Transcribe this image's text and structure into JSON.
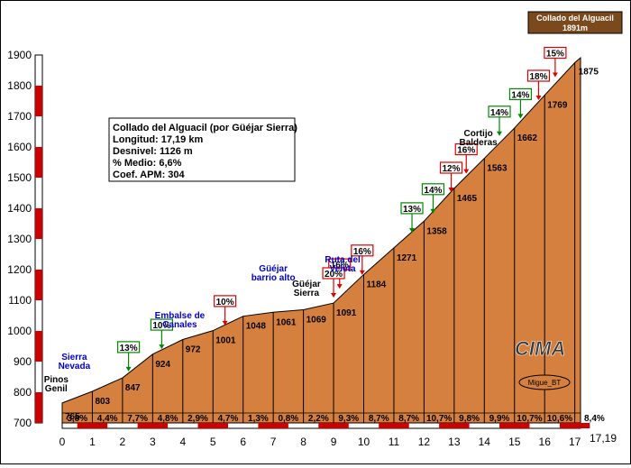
{
  "chart_data": {
    "type": "area",
    "title": "Collado del Alguacil",
    "summit_label": [
      "Collado del Alguacil",
      "1891m"
    ],
    "info": [
      "Collado del Alguacil (por Güéjar Sierra)",
      "Longitud: 17,19 km",
      "Desnivel: 1126 m",
      "% Medio: 6,6%",
      "Coef. APM: 304"
    ],
    "ylim": [
      700,
      1900
    ],
    "yticks": [
      700,
      800,
      900,
      1000,
      1100,
      1200,
      1300,
      1400,
      1500,
      1600,
      1700,
      1800,
      1900
    ],
    "xlim": [
      0,
      17.19
    ],
    "xticks": [
      "0",
      "1",
      "2",
      "3",
      "4",
      "5",
      "6",
      "7",
      "8",
      "9",
      "10",
      "11",
      "12",
      "13",
      "14",
      "15",
      "16",
      "17"
    ],
    "xend_label": "17,19",
    "x": [
      0,
      1,
      2,
      3,
      4,
      5,
      6,
      7,
      8,
      9,
      10,
      11,
      12,
      13,
      14,
      15,
      16,
      17,
      17.19
    ],
    "elevation": [
      765,
      803,
      847,
      924,
      972,
      1001,
      1048,
      1061,
      1069,
      1091,
      1184,
      1271,
      1358,
      1465,
      1563,
      1662,
      1769,
      1875,
      1891
    ],
    "point_labels": [
      "765",
      "803",
      "847",
      "924",
      "972",
      "1001",
      "1048",
      "1061",
      "1069",
      "1091",
      "1184",
      "1271",
      "1358",
      "1465",
      "1563",
      "1662",
      "1769",
      "1875"
    ],
    "segment_gradients": [
      "3,8%",
      "4,4%",
      "7,7%",
      "4,8%",
      "2,9%",
      "4,7%",
      "1,3%",
      "0,8%",
      "2,2%",
      "9,3%",
      "8,7%",
      "8,7%",
      "10,7%",
      "9,8%",
      "9,9%",
      "10,7%",
      "10,6%",
      "8,4%"
    ],
    "badges": [
      {
        "label": "13%",
        "x": 2.2,
        "elev": 865,
        "ramp": "green"
      },
      {
        "label": "10%",
        "x": 3.3,
        "elev": 938,
        "ramp": "green"
      },
      {
        "label": "10%",
        "x": 5.4,
        "elev": 1015,
        "ramp": "red"
      },
      {
        "label": "16%",
        "x": 9.2,
        "elev": 1135,
        "ramp": "red"
      },
      {
        "label": "20%",
        "x": 9.0,
        "elev": 1106,
        "ramp": "red"
      },
      {
        "label": "16%",
        "x": 9.95,
        "elev": 1180,
        "ramp": "red"
      },
      {
        "label": "13%",
        "x": 11.6,
        "elev": 1318,
        "ramp": "green"
      },
      {
        "label": "14%",
        "x": 12.3,
        "elev": 1380,
        "ramp": "green"
      },
      {
        "label": "12%",
        "x": 12.9,
        "elev": 1450,
        "ramp": "red"
      },
      {
        "label": "16%",
        "x": 13.4,
        "elev": 1510,
        "ramp": "red"
      },
      {
        "label": "14%",
        "x": 14.5,
        "elev": 1633,
        "ramp": "green"
      },
      {
        "label": "14%",
        "x": 15.2,
        "elev": 1690,
        "ramp": "green"
      },
      {
        "label": "18%",
        "x": 15.8,
        "elev": 1750,
        "ramp": "red"
      },
      {
        "label": "15%",
        "x": 16.35,
        "elev": 1825,
        "ramp": "red"
      }
    ],
    "places": [
      {
        "lines": [
          "Sierra",
          "Nevada"
        ],
        "x": 0.4,
        "color": "blue"
      },
      {
        "lines": [
          "Pinos",
          "Genil"
        ],
        "x": -0.2,
        "color": "black"
      },
      {
        "lines": [
          "Embalse de",
          "Canales"
        ],
        "x": 3.9,
        "color": "blue"
      },
      {
        "lines": [
          "Güéjar",
          "barrio alto"
        ],
        "x": 7.0,
        "color": "blue"
      },
      {
        "lines": [
          "Güéjar",
          "Sierra"
        ],
        "x": 8.1,
        "color": "black"
      },
      {
        "lines": [
          "Ruta del",
          "Veleta"
        ],
        "x": 9.3,
        "color": "blue"
      },
      {
        "lines": [
          "Cortijo",
          "Balderas"
        ],
        "x": 13.8,
        "color": "black"
      }
    ],
    "watermark": "CIMA",
    "credit": "Migue_BT"
  },
  "colors": {
    "profile": "#d5803f",
    "summit_box": "#7a4a1c",
    "green": "#008800",
    "red": "#dd0000",
    "axis_band": "#cc0000"
  }
}
